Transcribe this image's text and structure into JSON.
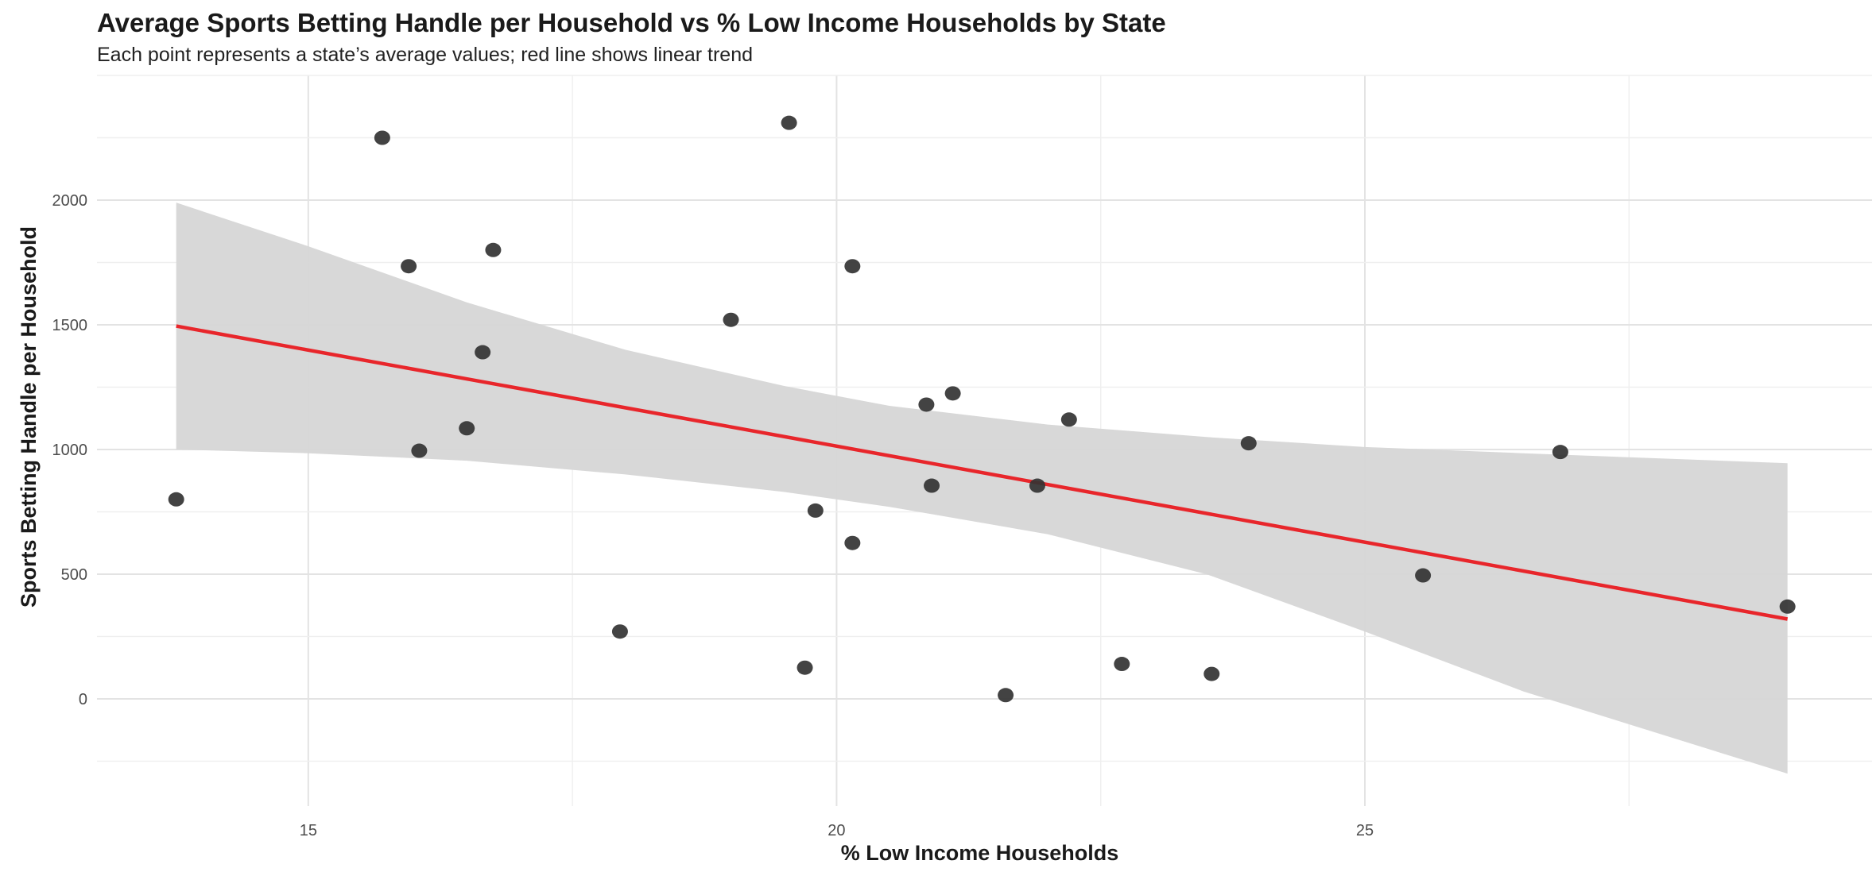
{
  "chart_data": {
    "type": "scatter",
    "title": "Average Sports Betting Handle per Household vs % Low Income Households by State",
    "subtitle": "Each point represents a state’s average values; red line shows linear trend",
    "xlabel": "% Low Income Households",
    "ylabel": "Sports Betting Handle per Household",
    "xlim": [
      13.0,
      29.8
    ],
    "ylim": [
      -430,
      2500
    ],
    "x_ticks": [
      15,
      20,
      25
    ],
    "y_ticks": [
      0,
      500,
      1000,
      1500,
      2000
    ],
    "grid": true,
    "point_color": "#333333",
    "trend_color": "#e8262b",
    "band_color": "#d6d6d6",
    "points": [
      {
        "x": 13.75,
        "y": 800
      },
      {
        "x": 15.7,
        "y": 2250
      },
      {
        "x": 15.95,
        "y": 1735
      },
      {
        "x": 16.05,
        "y": 995
      },
      {
        "x": 16.5,
        "y": 1085
      },
      {
        "x": 16.65,
        "y": 1390
      },
      {
        "x": 16.75,
        "y": 1800
      },
      {
        "x": 17.95,
        "y": 270
      },
      {
        "x": 19.0,
        "y": 1520
      },
      {
        "x": 19.55,
        "y": 2310
      },
      {
        "x": 19.7,
        "y": 125
      },
      {
        "x": 19.8,
        "y": 755
      },
      {
        "x": 20.15,
        "y": 625
      },
      {
        "x": 20.15,
        "y": 1735
      },
      {
        "x": 20.85,
        "y": 1180
      },
      {
        "x": 20.9,
        "y": 855
      },
      {
        "x": 21.1,
        "y": 1225
      },
      {
        "x": 21.6,
        "y": 15
      },
      {
        "x": 21.9,
        "y": 855
      },
      {
        "x": 22.2,
        "y": 1120
      },
      {
        "x": 22.7,
        "y": 140
      },
      {
        "x": 23.55,
        "y": 100
      },
      {
        "x": 23.9,
        "y": 1025
      },
      {
        "x": 25.55,
        "y": 495
      },
      {
        "x": 26.85,
        "y": 990
      },
      {
        "x": 29.0,
        "y": 370
      }
    ],
    "trend": {
      "x": [
        13.75,
        29.0
      ],
      "y": [
        1495,
        320
      ]
    },
    "confidence_band": {
      "x": [
        13.75,
        15.0,
        16.5,
        18.0,
        19.5,
        20.5,
        22.0,
        23.5,
        25.0,
        26.5,
        29.0
      ],
      "upper": [
        1990,
        1815,
        1590,
        1400,
        1255,
        1175,
        1100,
        1050,
        1010,
        985,
        945
      ],
      "lower": [
        1000,
        985,
        955,
        900,
        830,
        770,
        660,
        500,
        270,
        30,
        -300
      ]
    }
  }
}
